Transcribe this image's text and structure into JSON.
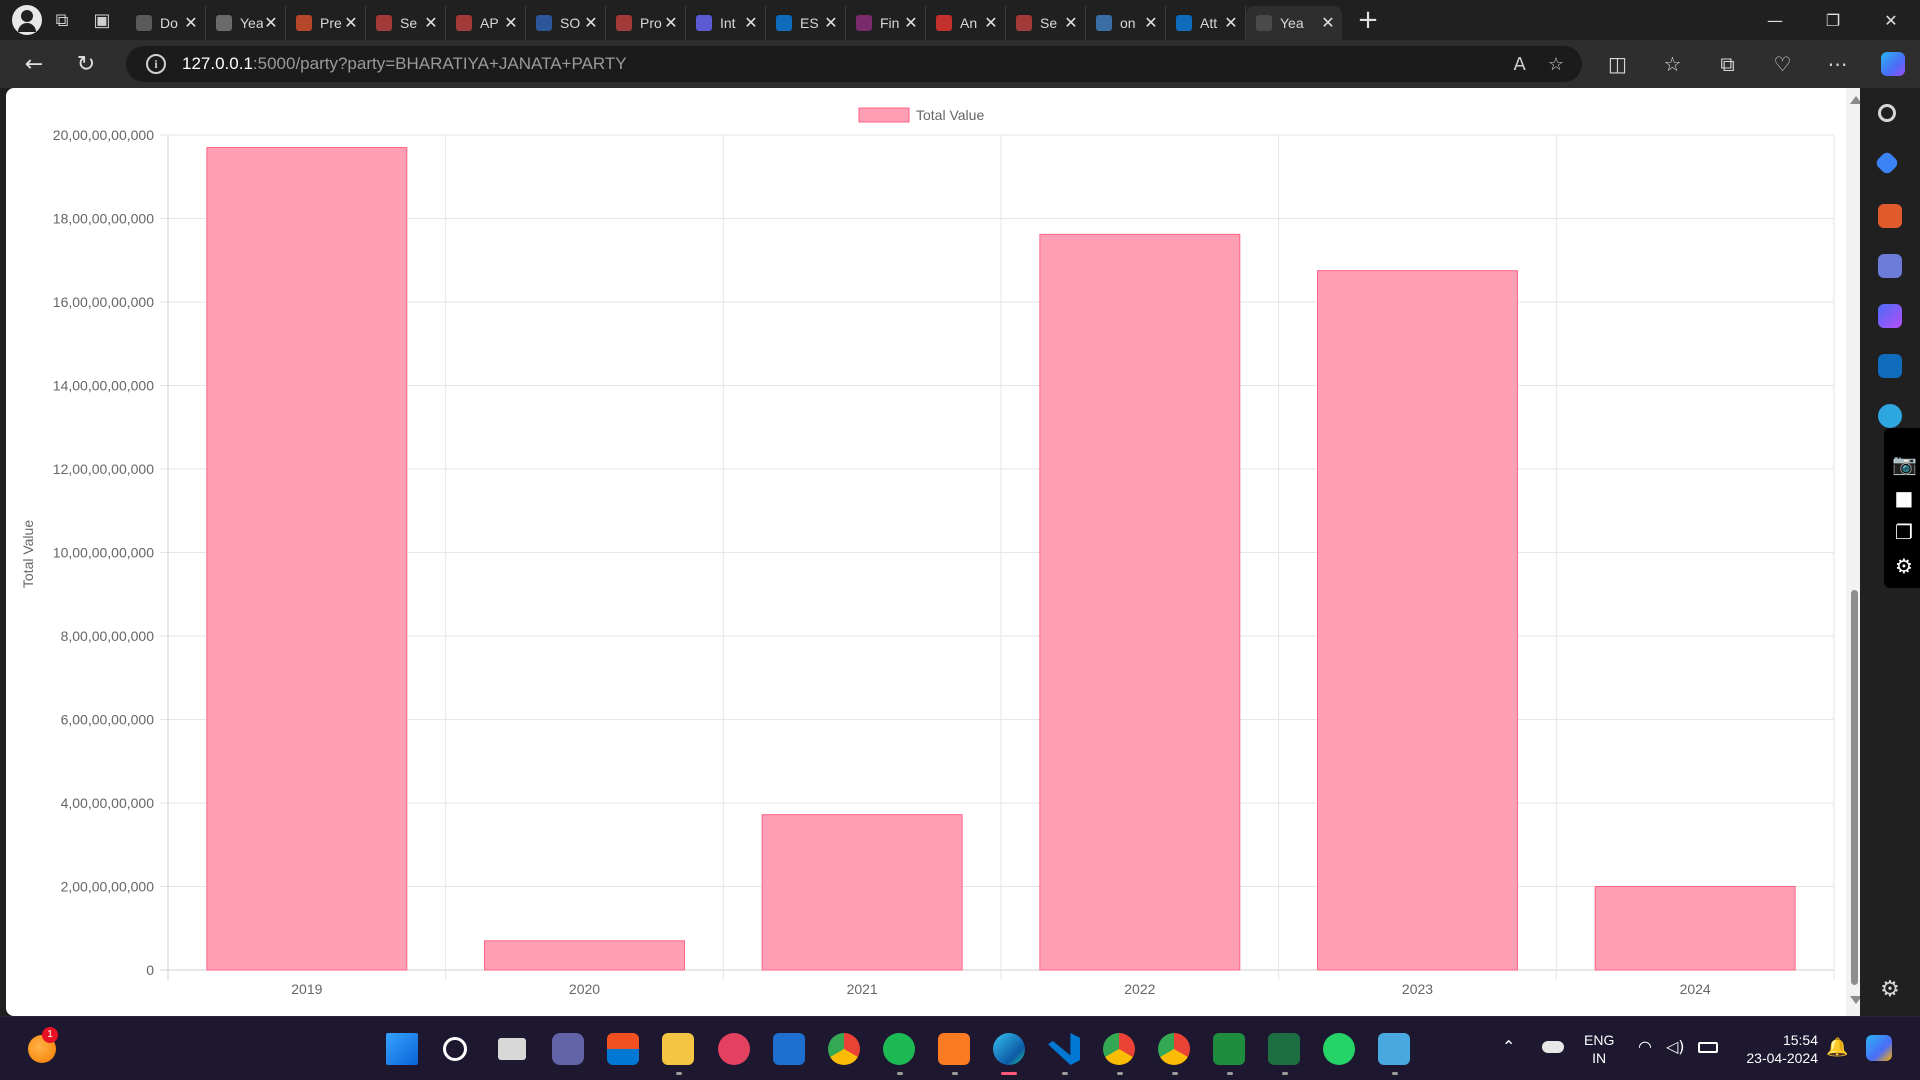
{
  "browser": {
    "tabs": [
      {
        "title": "Do",
        "favicon_color": "#5a5a5a",
        "active": false
      },
      {
        "title": "Yea",
        "favicon_color": "#6a6a6a",
        "active": false
      },
      {
        "title": "Pre",
        "favicon_color": "#b7472a",
        "active": false
      },
      {
        "title": "Se",
        "favicon_color": "#a33a3a",
        "active": false
      },
      {
        "title": "AP",
        "favicon_color": "#a33a3a",
        "active": false
      },
      {
        "title": "SO",
        "favicon_color": "#2b579a",
        "active": false
      },
      {
        "title": "Pro",
        "favicon_color": "#a33a3a",
        "active": false
      },
      {
        "title": "Int",
        "favicon_color": "#5b5bd6",
        "active": false
      },
      {
        "title": "ES",
        "favicon_color": "#0f6cbd",
        "active": false
      },
      {
        "title": "Fin",
        "favicon_color": "#7a2b6b",
        "active": false
      },
      {
        "title": "An",
        "favicon_color": "#c4302b",
        "active": false
      },
      {
        "title": "Se",
        "favicon_color": "#a33a3a",
        "active": false
      },
      {
        "title": "on",
        "favicon_color": "#3a6ea5",
        "active": false
      },
      {
        "title": "Att",
        "favicon_color": "#0f6cbd",
        "active": false
      },
      {
        "title": "Yea",
        "favicon_color": "#4a4a4a",
        "active": true
      }
    ],
    "url_host": "127.0.0.1",
    "url_path": ":5000/party?party=BHARATIYA+JANATA+PARTY"
  },
  "chart_data": {
    "type": "bar",
    "title": "",
    "legend": {
      "label": "Total Value",
      "position": "top"
    },
    "xlabel": "",
    "ylabel": "Total Value",
    "categories": [
      "2019",
      "2020",
      "2021",
      "2022",
      "2023",
      "2024"
    ],
    "values": [
      19700000000,
      700000000,
      3720000000,
      17620000000,
      16750000000,
      2000000000
    ],
    "ylim": [
      0,
      20000000000
    ],
    "yticks": [
      "0",
      "2,00,00,00,000",
      "4,00,00,00,000",
      "6,00,00,00,000",
      "8,00,00,00,000",
      "10,00,00,00,000",
      "12,00,00,00,000",
      "14,00,00,00,000",
      "16,00,00,00,000",
      "18,00,00,00,000",
      "20,00,00,00,000"
    ],
    "bar_color": "#ff9fb5",
    "bar_border": "#ff6384",
    "grid": true
  },
  "taskbar": {
    "language_line1": "ENG",
    "language_line2": "IN",
    "time": "15:54",
    "date": "23-04-2024",
    "notification_badge": "1"
  }
}
